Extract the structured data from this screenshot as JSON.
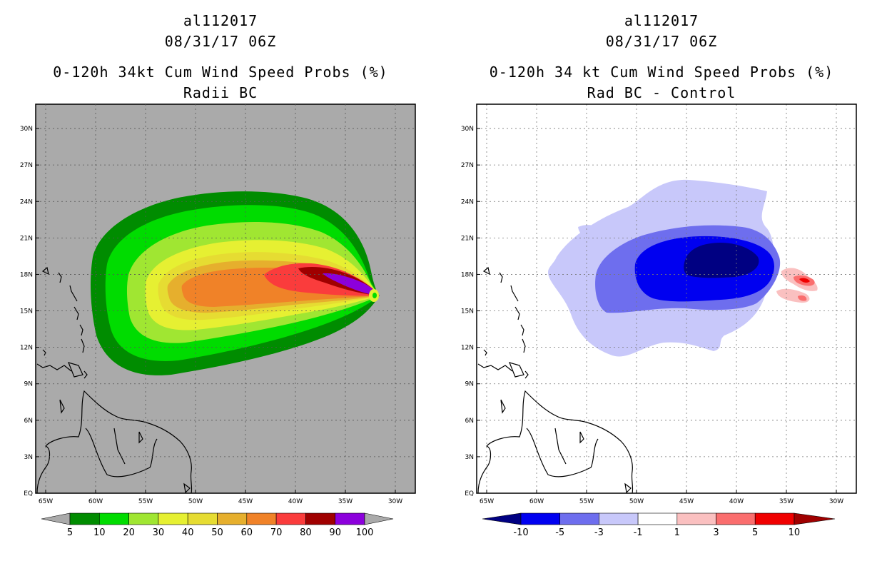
{
  "left_panel": {
    "storm_id": "al112017",
    "datetime": "08/31/17 06Z",
    "title": "0-120h 34kt Cum Wind Speed Probs (%)",
    "subtitle": "Radii BC",
    "colorbar_labels": [
      "5",
      "10",
      "20",
      "30",
      "40",
      "50",
      "60",
      "70",
      "80",
      "90",
      "100"
    ],
    "colors": [
      "#008c00",
      "#00dc00",
      "#a0e632",
      "#e6f032",
      "#e6dc32",
      "#e6af2d",
      "#f08228",
      "#fa3c3c",
      "#a00000",
      "#8c00dc"
    ],
    "background_color": "#aaaaaa",
    "outer_arrow_color": "#aaaaaa"
  },
  "right_panel": {
    "storm_id": "al112017",
    "datetime": "08/31/17 06Z",
    "title": "0-120h 34 kt Cum Wind Speed Probs (%)",
    "subtitle": "Rad BC - Control",
    "colorbar_labels": [
      "-10",
      "-5",
      "-3",
      "-1",
      "1",
      "3",
      "5",
      "10"
    ],
    "colors": [
      "#000082",
      "#0000f0",
      "#6e6eee",
      "#c8c8fa",
      "#ffffff",
      "#fac0c0",
      "#fa6e6e",
      "#f00000",
      "#a00000"
    ],
    "background_color": "#ffffff"
  },
  "axes": {
    "lat_labels": [
      "EQ",
      "3N",
      "6N",
      "9N",
      "12N",
      "15N",
      "18N",
      "21N",
      "24N",
      "27N",
      "30N"
    ],
    "lon_labels": [
      "65W",
      "60W",
      "55W",
      "50W",
      "45W",
      "40W",
      "35W",
      "30W"
    ]
  }
}
